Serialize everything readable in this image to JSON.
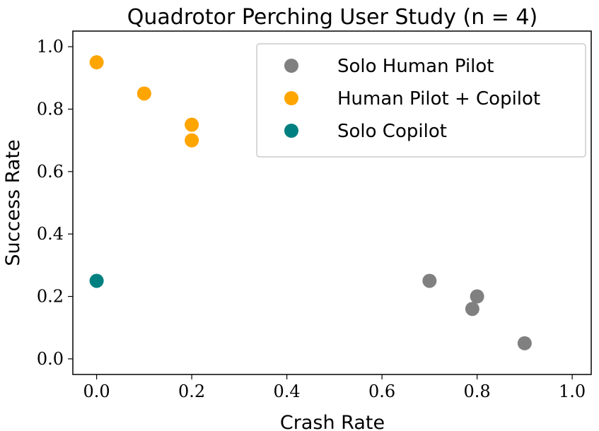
{
  "chart_data": {
    "type": "scatter",
    "title": "Quadrotor Perching User Study (n = 4)",
    "xlabel": "Crash Rate",
    "ylabel": "Success Rate",
    "xlim": [
      -0.05,
      1.04
    ],
    "ylim": [
      -0.05,
      1.05
    ],
    "xticks": [
      "0.0",
      "0.2",
      "0.4",
      "0.6",
      "0.8",
      "1.0"
    ],
    "yticks": [
      "0.0",
      "0.2",
      "0.4",
      "0.6",
      "0.8",
      "1.0"
    ],
    "grid": false,
    "legend_position": "top-right",
    "series": [
      {
        "name": "Solo Human Pilot",
        "color": "#808080",
        "points": [
          [
            0.7,
            0.25
          ],
          [
            0.8,
            0.2
          ],
          [
            0.79,
            0.16
          ],
          [
            0.9,
            0.05
          ]
        ]
      },
      {
        "name": "Human Pilot + Copilot",
        "color": "#FFA500",
        "points": [
          [
            0.0,
            0.95
          ],
          [
            0.1,
            0.85
          ],
          [
            0.2,
            0.75
          ],
          [
            0.2,
            0.7
          ]
        ]
      },
      {
        "name": "Solo Copilot",
        "color": "#008080",
        "points": [
          [
            0.0,
            0.25
          ]
        ]
      }
    ]
  }
}
